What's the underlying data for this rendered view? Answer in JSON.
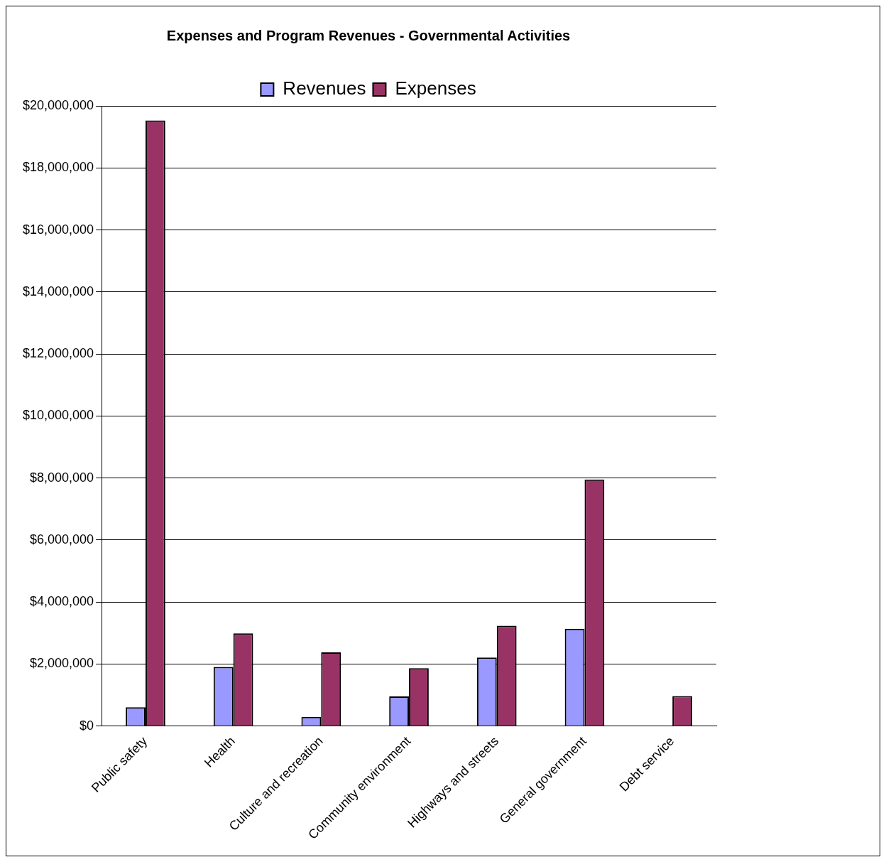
{
  "chart_data": {
    "type": "bar",
    "title": "Expenses and Program Revenues - Governmental Activities",
    "categories": [
      "Public safety",
      "Health",
      "Culture and recreation",
      "Community environment",
      "Highways and streets",
      "General government",
      "Debt service"
    ],
    "series": [
      {
        "name": "Revenues",
        "color": "#9999ff",
        "values": [
          610000,
          1910000,
          300000,
          960000,
          2210000,
          3140000,
          null
        ]
      },
      {
        "name": "Expenses",
        "color": "#993366",
        "values": [
          19530000,
          2990000,
          2380000,
          1870000,
          3240000,
          7950000,
          970000
        ]
      }
    ],
    "ylim": [
      0,
      20000000
    ],
    "yticks": [
      {
        "value": 0,
        "label": "$0"
      },
      {
        "value": 2000000,
        "label": "$2,000,000"
      },
      {
        "value": 4000000,
        "label": "$4,000,000"
      },
      {
        "value": 6000000,
        "label": "$6,000,000"
      },
      {
        "value": 8000000,
        "label": "$8,000,000"
      },
      {
        "value": 10000000,
        "label": "$10,000,000"
      },
      {
        "value": 12000000,
        "label": "$12,000,000"
      },
      {
        "value": 14000000,
        "label": "$14,000,000"
      },
      {
        "value": 16000000,
        "label": "$16,000,000"
      },
      {
        "value": 18000000,
        "label": "$18,000,000"
      },
      {
        "value": 20000000,
        "label": "$20,000,000"
      }
    ],
    "grid": "y",
    "legend": "top"
  }
}
